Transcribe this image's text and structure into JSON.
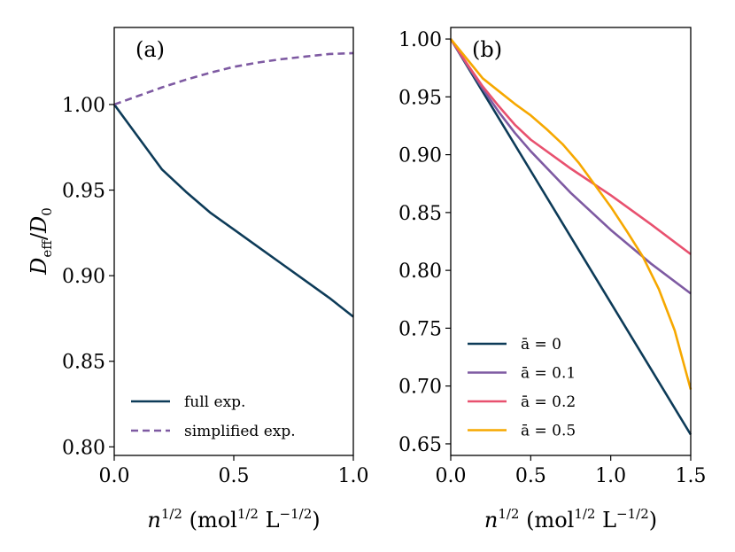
{
  "chart_data": [
    {
      "type": "line",
      "panel": "(a)",
      "xlabel": "n^{1/2} (mol^{1/2} L^{-1/2})",
      "ylabel": "D_eff / D_0",
      "xlim": [
        0.0,
        1.0
      ],
      "ylim": [
        0.795,
        1.045
      ],
      "xticks": [
        0.0,
        0.5,
        1.0
      ],
      "xtick_labels": [
        "0.0",
        "0.5",
        "1.0"
      ],
      "yticks": [
        0.8,
        0.85,
        0.9,
        0.95,
        1.0
      ],
      "ytick_labels": [
        "0.80",
        "0.85",
        "0.90",
        "0.95",
        "1.00"
      ],
      "legend_position": "lower-left",
      "series": [
        {
          "name": "full exp.",
          "style": "solid",
          "color": "#0d3b58",
          "x": [
            0.0,
            0.1,
            0.2,
            0.3,
            0.4,
            0.5,
            0.6,
            0.7,
            0.8,
            0.9,
            1.0
          ],
          "y": [
            1.0,
            0.981,
            0.962,
            0.949,
            0.937,
            0.927,
            0.917,
            0.907,
            0.897,
            0.887,
            0.876
          ]
        },
        {
          "name": "simplified exp.",
          "style": "dashed",
          "color": "#7e5aa2",
          "x": [
            0.0,
            0.1,
            0.2,
            0.3,
            0.4,
            0.5,
            0.6,
            0.7,
            0.8,
            0.9,
            1.0
          ],
          "y": [
            1.0,
            1.005,
            1.01,
            1.0145,
            1.0185,
            1.022,
            1.0245,
            1.0265,
            1.028,
            1.0295,
            1.03
          ]
        }
      ]
    },
    {
      "type": "line",
      "panel": "(b)",
      "xlabel": "n^{1/2} (mol^{1/2} L^{-1/2})",
      "ylabel": "",
      "xlim": [
        0.0,
        1.5
      ],
      "ylim": [
        0.64,
        1.01
      ],
      "xticks": [
        0.0,
        0.5,
        1.0,
        1.5
      ],
      "xtick_labels": [
        "0.0",
        "0.5",
        "1.0",
        "1.5"
      ],
      "yticks": [
        0.65,
        0.7,
        0.75,
        0.8,
        0.85,
        0.9,
        0.95,
        1.0
      ],
      "ytick_labels": [
        "0.65",
        "0.70",
        "0.75",
        "0.80",
        "0.85",
        "0.90",
        "0.95",
        "1.00"
      ],
      "legend_position": "lower-left",
      "series": [
        {
          "name": "ā = 0",
          "color": "#0d3b58",
          "x": [
            0.0,
            0.25,
            0.5,
            0.75,
            1.0,
            1.25,
            1.5
          ],
          "y": [
            1.0,
            0.943,
            0.886,
            0.829,
            0.772,
            0.715,
            0.658
          ]
        },
        {
          "name": "ā = 0.1",
          "color": "#7e5aa2",
          "x": [
            0.0,
            0.1,
            0.2,
            0.3,
            0.4,
            0.5,
            0.75,
            1.0,
            1.25,
            1.5
          ],
          "y": [
            1.0,
            0.978,
            0.957,
            0.937,
            0.919,
            0.903,
            0.867,
            0.835,
            0.806,
            0.78
          ]
        },
        {
          "name": "ā = 0.2",
          "color": "#e8516f",
          "x": [
            0.0,
            0.1,
            0.2,
            0.3,
            0.4,
            0.5,
            0.75,
            1.0,
            1.25,
            1.5
          ],
          "y": [
            1.0,
            0.979,
            0.959,
            0.942,
            0.926,
            0.913,
            0.888,
            0.865,
            0.84,
            0.814
          ]
        },
        {
          "name": "ā = 0.5",
          "color": "#f6a800",
          "x": [
            0.0,
            0.1,
            0.2,
            0.3,
            0.4,
            0.5,
            0.6,
            0.7,
            0.8,
            0.9,
            1.0,
            1.1,
            1.2,
            1.3,
            1.4,
            1.5
          ],
          "y": [
            1.0,
            0.983,
            0.966,
            0.955,
            0.944,
            0.934,
            0.922,
            0.909,
            0.893,
            0.874,
            0.855,
            0.834,
            0.812,
            0.784,
            0.748,
            0.697
          ]
        }
      ]
    }
  ]
}
